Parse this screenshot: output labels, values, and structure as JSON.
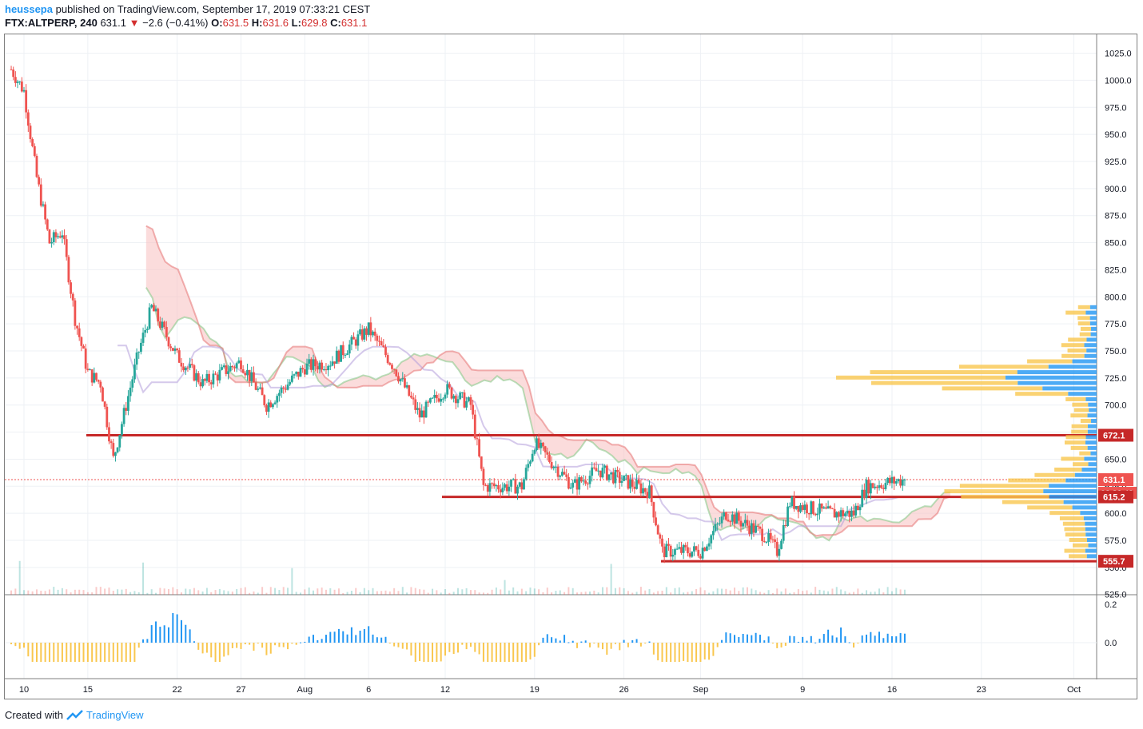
{
  "header": {
    "user": "heussepa",
    "published": "published on TradingView.com, September 17, 2019 07:33:21 CEST",
    "symbol": "FTX:ALTPERP, 240",
    "last": "631.1",
    "arrow": "▼",
    "change": "−2.6 (−0.41%)",
    "o_label": "O:",
    "o": "631.5",
    "h_label": "H:",
    "h": "631.6",
    "l_label": "L:",
    "l": "629.8",
    "c_label": "C:",
    "c": "631.1"
  },
  "footer": {
    "created": "Created with",
    "brand": "TradingView"
  },
  "colors": {
    "up": "#26a69a",
    "down": "#ef5350",
    "level": "#c62828",
    "volume_profile_buy": "#2196f3",
    "volume_profile_sell": "#f9c74f",
    "cloud_bear": "#f8c4c4",
    "cloud_bull": "#c8e6c9",
    "baseline": "#b39ddb"
  },
  "chart_data": {
    "type": "candlestick",
    "timeframe": "240",
    "x_ticks": [
      "10",
      "15",
      "22",
      "27",
      "Aug",
      "6",
      "12",
      "19",
      "26",
      "Sep",
      "9",
      "16",
      "23",
      "Oct"
    ],
    "y_ticks": [
      "1025.0",
      "1000.0",
      "975.0",
      "950.0",
      "925.0",
      "900.0",
      "875.0",
      "850.0",
      "825.0",
      "800.0",
      "775.0",
      "750.0",
      "725.0",
      "700.0",
      "675.0",
      "650.0",
      "625.0",
      "600.0",
      "575.0",
      "550.0",
      "525.0"
    ],
    "ylim": [
      525,
      1025
    ],
    "price_path": [
      {
        "date": "Jul 9",
        "price": 1010
      },
      {
        "date": "Jul 10",
        "price": 990
      },
      {
        "date": "Jul 11",
        "price": 910
      },
      {
        "date": "Jul 12",
        "price": 850
      },
      {
        "date": "Jul 13",
        "price": 860
      },
      {
        "date": "Jul 14",
        "price": 780
      },
      {
        "date": "Jul 15",
        "price": 730
      },
      {
        "date": "Jul 16",
        "price": 720
      },
      {
        "date": "Jul 17",
        "price": 650
      },
      {
        "date": "Jul 18",
        "price": 700
      },
      {
        "date": "Jul 19",
        "price": 750
      },
      {
        "date": "Jul 20",
        "price": 790
      },
      {
        "date": "Jul 22",
        "price": 745
      },
      {
        "date": "Jul 24",
        "price": 720
      },
      {
        "date": "Jul 27",
        "price": 740
      },
      {
        "date": "Jul 29",
        "price": 700
      },
      {
        "date": "Aug 1",
        "price": 735
      },
      {
        "date": "Aug 3",
        "price": 740
      },
      {
        "date": "Aug 6",
        "price": 770
      },
      {
        "date": "Aug 8",
        "price": 735
      },
      {
        "date": "Aug 10",
        "price": 690
      },
      {
        "date": "Aug 12",
        "price": 715
      },
      {
        "date": "Aug 14",
        "price": 700
      },
      {
        "date": "Aug 15",
        "price": 625
      },
      {
        "date": "Aug 18",
        "price": 625
      },
      {
        "date": "Aug 19",
        "price": 665
      },
      {
        "date": "Aug 22",
        "price": 625
      },
      {
        "date": "Aug 24",
        "price": 640
      },
      {
        "date": "Aug 28",
        "price": 620
      },
      {
        "date": "Aug 29",
        "price": 565
      },
      {
        "date": "Sep 1",
        "price": 565
      },
      {
        "date": "Sep 3",
        "price": 600
      },
      {
        "date": "Sep 6",
        "price": 580
      },
      {
        "date": "Sep 7",
        "price": 565
      },
      {
        "date": "Sep 8",
        "price": 610
      },
      {
        "date": "Sep 11",
        "price": 600
      },
      {
        "date": "Sep 13",
        "price": 600
      },
      {
        "date": "Sep 14",
        "price": 625
      },
      {
        "date": "Sep 17",
        "price": 631.1
      }
    ],
    "levels": [
      {
        "label": "672.1",
        "price": 672.1
      },
      {
        "label": "631.1",
        "price": 631.1
      },
      {
        "label": "615.2",
        "price": 615.2
      },
      {
        "label": "555.7",
        "price": 555.7
      }
    ],
    "countdown_label": "02:26:40",
    "oscillator_ticks": [
      "0.2",
      "0.0"
    ],
    "oscillator_ylim": [
      -0.1,
      0.2
    ]
  }
}
